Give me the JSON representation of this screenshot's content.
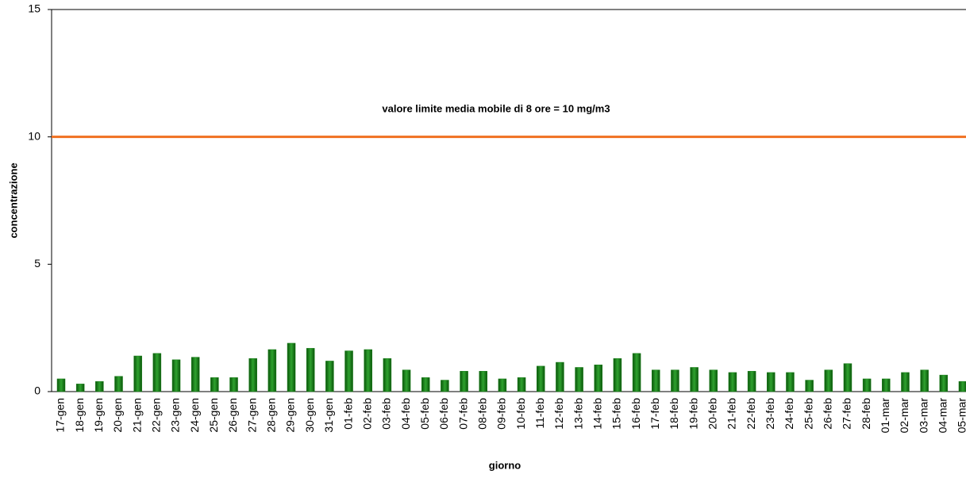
{
  "chart_data": {
    "type": "bar",
    "x_label": "giorno",
    "y_label": "concentrazione",
    "categories": [
      "17-gen",
      "18-gen",
      "19-gen",
      "20-gen",
      "21-gen",
      "22-gen",
      "23-gen",
      "24-gen",
      "25-gen",
      "26-gen",
      "27-gen",
      "28-gen",
      "29-gen",
      "30-gen",
      "31-gen",
      "01-feb",
      "02-feb",
      "03-feb",
      "04-feb",
      "05-feb",
      "06-feb",
      "07-feb",
      "08-feb",
      "09-feb",
      "10-feb",
      "11-feb",
      "12-feb",
      "13-feb",
      "14-feb",
      "15-feb",
      "16-feb",
      "17-feb",
      "18-feb",
      "19-feb",
      "20-feb",
      "21-feb",
      "22-feb",
      "23-feb",
      "24-feb",
      "25-feb",
      "26-feb",
      "27-feb",
      "28-feb",
      "01-mar",
      "02-mar",
      "03-mar",
      "04-mar",
      "05-mar"
    ],
    "values": [
      0.5,
      0.3,
      0.4,
      0.6,
      1.4,
      1.5,
      1.25,
      1.35,
      0.55,
      0.55,
      1.3,
      1.65,
      1.9,
      1.7,
      1.2,
      1.6,
      1.65,
      1.3,
      0.85,
      0.55,
      0.45,
      0.8,
      0.8,
      0.5,
      0.55,
      1.0,
      1.15,
      0.95,
      1.05,
      1.3,
      1.5,
      0.85,
      0.85,
      0.95,
      0.85,
      0.75,
      0.8,
      0.75,
      0.75,
      0.45,
      0.85,
      1.1,
      0.5,
      0.5,
      0.75,
      0.85,
      0.65,
      0.4
    ],
    "color": "#1a7f1a",
    "reference_line": {
      "value": 10,
      "label": "valore limite media mobile di 8 ore = 10 mg/m3",
      "color": "#f07020"
    },
    "ylim": [
      0,
      15
    ],
    "yticks": [
      0,
      5,
      10,
      15
    ],
    "grid": false
  }
}
